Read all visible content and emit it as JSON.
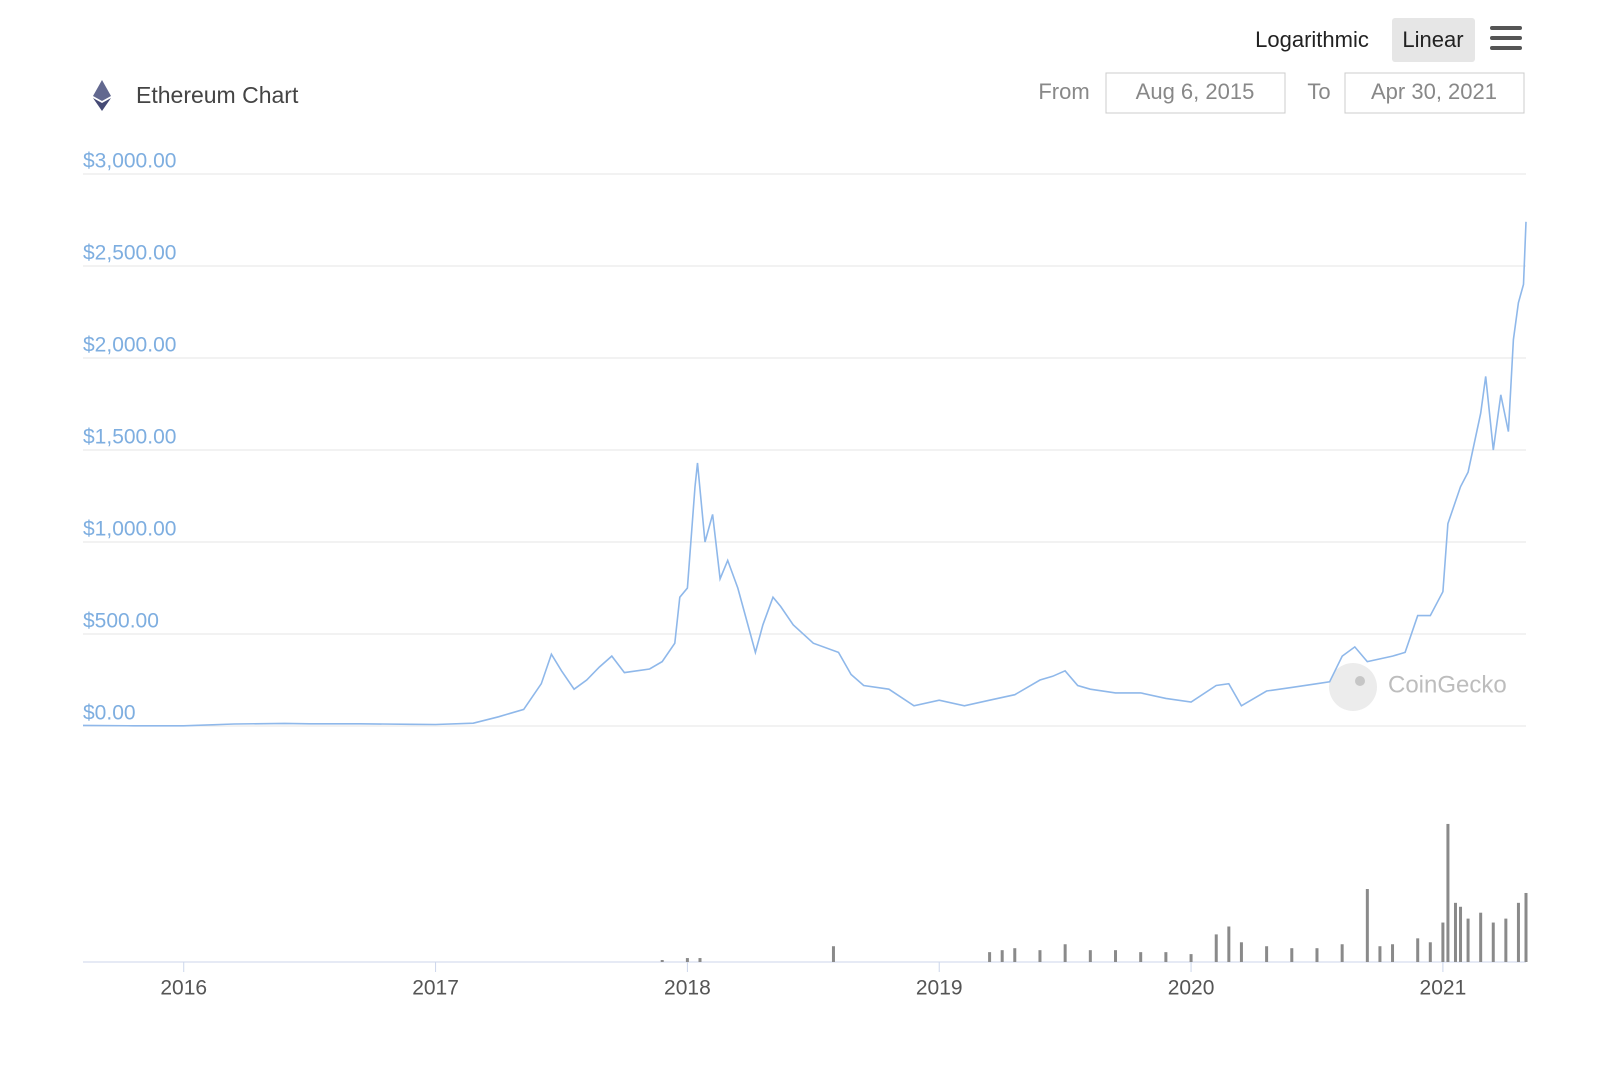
{
  "controls": {
    "scale_options": [
      "Logarithmic",
      "Linear"
    ],
    "selected_scale": "Linear",
    "from_label": "From",
    "from_date": "Aug 6, 2015",
    "to_label": "To",
    "to_date": "Apr 30, 2021"
  },
  "watermark": "CoinGecko",
  "chart_data": {
    "type": "line",
    "title": "Ethereum Chart",
    "color": "#8fb8ea",
    "grid": true,
    "x": [
      2015.6,
      2015.8,
      2016.0,
      2016.2,
      2016.4,
      2016.5,
      2016.7,
      2016.9,
      2017.0,
      2017.15,
      2017.25,
      2017.35,
      2017.42,
      2017.46,
      2017.5,
      2017.55,
      2017.6,
      2017.65,
      2017.7,
      2017.75,
      2017.8,
      2017.85,
      2017.9,
      2017.95,
      2017.97,
      2018.0,
      2018.03,
      2018.04,
      2018.07,
      2018.1,
      2018.13,
      2018.16,
      2018.2,
      2018.25,
      2018.27,
      2018.3,
      2018.34,
      2018.37,
      2018.42,
      2018.5,
      2018.6,
      2018.65,
      2018.7,
      2018.8,
      2018.9,
      2019.0,
      2019.1,
      2019.2,
      2019.3,
      2019.4,
      2019.45,
      2019.5,
      2019.55,
      2019.6,
      2019.7,
      2019.8,
      2019.9,
      2020.0,
      2020.1,
      2020.15,
      2020.2,
      2020.3,
      2020.4,
      2020.5,
      2020.55,
      2020.6,
      2020.65,
      2020.7,
      2020.8,
      2020.85,
      2020.9,
      2020.95,
      2021.0,
      2021.02,
      2021.07,
      2021.1,
      2021.15,
      2021.17,
      2021.2,
      2021.23,
      2021.26,
      2021.28,
      2021.3,
      2021.32,
      2021.33
    ],
    "values": [
      3,
      1,
      1,
      11,
      14,
      12,
      12,
      9,
      8,
      15,
      50,
      90,
      230,
      390,
      300,
      200,
      250,
      320,
      380,
      290,
      300,
      310,
      350,
      450,
      700,
      750,
      1300,
      1430,
      1000,
      1150,
      800,
      900,
      750,
      500,
      400,
      550,
      700,
      650,
      550,
      450,
      400,
      280,
      220,
      200,
      110,
      140,
      110,
      140,
      170,
      250,
      270,
      300,
      220,
      200,
      180,
      180,
      150,
      130,
      220,
      230,
      110,
      190,
      210,
      230,
      240,
      380,
      430,
      350,
      380,
      400,
      600,
      600,
      730,
      1100,
      1300,
      1380,
      1700,
      1900,
      1500,
      1800,
      1600,
      2100,
      2300,
      2400,
      2740
    ],
    "xlim": [
      2015.6,
      2021.33
    ],
    "xticks": [
      2016,
      2017,
      2018,
      2019,
      2020,
      2021
    ],
    "ylim": [
      0,
      3000
    ],
    "yticks": [
      {
        "value": 0,
        "label": "$0.00"
      },
      {
        "value": 500,
        "label": "$500.00"
      },
      {
        "value": 1000,
        "label": "$1,000.00"
      },
      {
        "value": 1500,
        "label": "$1,500.00"
      },
      {
        "value": 2000,
        "label": "$2,000.00"
      },
      {
        "value": 2500,
        "label": "$2,500.00"
      },
      {
        "value": 3000,
        "label": "$3,000.00"
      }
    ],
    "volume": {
      "color": "#8a8a8a",
      "ylim": [
        0,
        72
      ],
      "x": [
        2017.9,
        2018.0,
        2018.05,
        2018.58,
        2019.2,
        2019.25,
        2019.3,
        2019.4,
        2019.5,
        2019.6,
        2019.7,
        2019.8,
        2019.9,
        2020.0,
        2020.1,
        2020.15,
        2020.2,
        2020.3,
        2020.4,
        2020.5,
        2020.6,
        2020.7,
        2020.75,
        2020.8,
        2020.9,
        2020.95,
        2021.0,
        2021.02,
        2021.05,
        2021.07,
        2021.1,
        2021.15,
        2021.2,
        2021.25,
        2021.3,
        2021.33
      ],
      "values": [
        1,
        2,
        2,
        8,
        5,
        6,
        7,
        6,
        9,
        6,
        6,
        5,
        5,
        4,
        14,
        18,
        10,
        8,
        7,
        7,
        9,
        37,
        8,
        9,
        12,
        10,
        20,
        70,
        30,
        28,
        22,
        25,
        20,
        22,
        30,
        35
      ]
    }
  }
}
